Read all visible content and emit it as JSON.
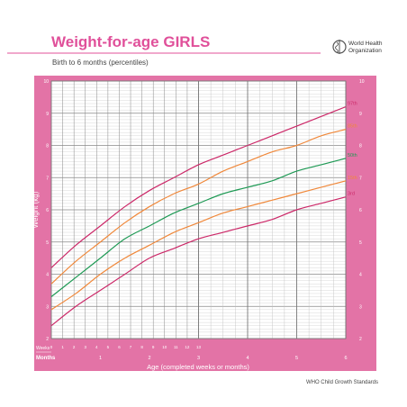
{
  "title": "Weight-for-age GIRLS",
  "subtitle": "Birth to 6 months (percentiles)",
  "organization": "World Health\nOrganization",
  "footer": "WHO Child Growth Standards",
  "colors": {
    "frame": "#e373a6",
    "title": "#e0509a",
    "grid": "#bdbdbd",
    "red": "#cc2868",
    "orange": "#f0883a",
    "green": "#1f9a55",
    "label": "#ffffff"
  },
  "chart_data": {
    "type": "line",
    "title": "Weight-for-age GIRLS",
    "subtitle": "Birth to 6 months (percentiles)",
    "xlabel": "Age (completed weeks or months)",
    "ylabel": "Weight (kg)",
    "x_unit": "months",
    "xlim": [
      0,
      6
    ],
    "ylim": [
      2,
      10
    ],
    "grid": true,
    "week_ticks": [
      "0",
      "1",
      "2",
      "3",
      "4",
      "5",
      "6",
      "7",
      "8",
      "9",
      "10",
      "11",
      "12",
      "13"
    ],
    "month_ticks": [
      "1",
      "2",
      "3",
      "4",
      "5",
      "6"
    ],
    "row_labels": {
      "weeks": "Weeks",
      "months": "Months"
    },
    "y_ticks": [
      "2",
      "3",
      "4",
      "5",
      "6",
      "7",
      "8",
      "9",
      "10"
    ],
    "x": [
      0,
      0.5,
      1,
      1.5,
      2,
      2.5,
      3,
      3.5,
      4,
      4.5,
      5,
      5.5,
      6
    ],
    "series": [
      {
        "name": "97th",
        "color": "#cc2868",
        "values": [
          4.2,
          4.9,
          5.5,
          6.1,
          6.6,
          7.0,
          7.4,
          7.7,
          8.0,
          8.3,
          8.6,
          8.9,
          9.2
        ]
      },
      {
        "name": "85th",
        "color": "#f0883a",
        "values": [
          3.7,
          4.4,
          5.0,
          5.6,
          6.1,
          6.5,
          6.8,
          7.2,
          7.5,
          7.8,
          8.0,
          8.3,
          8.5
        ]
      },
      {
        "name": "50th",
        "color": "#1f9a55",
        "values": [
          3.3,
          3.9,
          4.5,
          5.1,
          5.5,
          5.9,
          6.2,
          6.5,
          6.7,
          6.9,
          7.2,
          7.4,
          7.6
        ]
      },
      {
        "name": "15th",
        "color": "#f0883a",
        "values": [
          2.9,
          3.4,
          4.0,
          4.5,
          4.9,
          5.3,
          5.6,
          5.9,
          6.1,
          6.3,
          6.5,
          6.7,
          6.9
        ]
      },
      {
        "name": "3rd",
        "color": "#cc2868",
        "values": [
          2.4,
          3.0,
          3.5,
          4.0,
          4.5,
          4.8,
          5.1,
          5.3,
          5.5,
          5.7,
          6.0,
          6.2,
          6.4
        ]
      }
    ]
  }
}
